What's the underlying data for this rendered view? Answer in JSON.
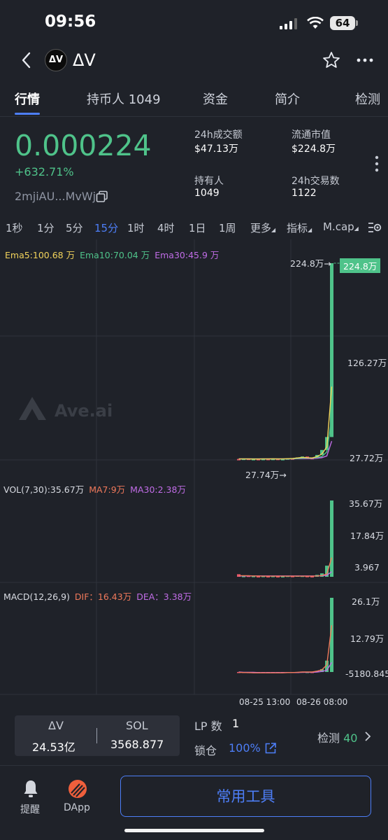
{
  "status_bar": {
    "time": "09:56",
    "battery": "64"
  },
  "header": {
    "title": "ΔV",
    "logo_text": "ΔV"
  },
  "tabs": [
    {
      "label": "行情"
    },
    {
      "label": "持币人 1049"
    },
    {
      "label": "资金"
    },
    {
      "label": "简介"
    },
    {
      "label": "检测"
    }
  ],
  "price": {
    "value": "0.000224",
    "change": "+632.71%",
    "address": "2mjiAU...MvWj"
  },
  "stats": {
    "volume_24h_label": "24h成交额",
    "volume_24h": "$47.13万",
    "market_cap_label": "流通市值",
    "market_cap": "$224.8万",
    "holders_label": "持有人",
    "holders": "1049",
    "tx_24h_label": "24h交易数",
    "tx_24h": "1122"
  },
  "timeframes": [
    "1秒",
    "1分",
    "5分",
    "15分",
    "1时",
    "4时",
    "1日",
    "1周"
  ],
  "active_timeframe": "15分",
  "chart_menu": {
    "more": "更多",
    "indicators": "指标",
    "mode": "M.cap"
  },
  "watermark": "Ave.ai",
  "colors": {
    "up": "#4fc38a",
    "down": "#e7576a",
    "accent": "#4d7ef7",
    "ema5": "#f2d35b",
    "ema10": "#4fc38a",
    "ema30": "#c06ce6",
    "dif": "#f0795b",
    "dea": "#c06ce6"
  },
  "chart_data": [
    {
      "type": "candlestick",
      "legend": {
        "ema5": "Ema5:100.68 万",
        "ema10": "Ema10:70.04 万",
        "ema30": "Ema30:45.9 万"
      },
      "y_ticks": [
        "224.8万",
        "126.27万",
        "27.72万"
      ],
      "high_label": "224.8万→",
      "low_label": "27.74万→",
      "last_label": "224.8万",
      "x_labels": [
        "08-25 13:00",
        "08-26 08:00"
      ],
      "candles": [
        {
          "o": 28.0,
          "c": 27.8
        },
        {
          "o": 27.8,
          "c": 28.3
        },
        {
          "o": 28.3,
          "c": 27.9
        },
        {
          "o": 27.9,
          "c": 28.0
        },
        {
          "o": 28.0,
          "c": 27.75
        },
        {
          "o": 27.75,
          "c": 28.1
        },
        {
          "o": 28.1,
          "c": 27.9
        },
        {
          "o": 27.9,
          "c": 28.2
        },
        {
          "o": 28.2,
          "c": 27.95
        },
        {
          "o": 27.95,
          "c": 28.0
        },
        {
          "o": 28.0,
          "c": 28.6
        },
        {
          "o": 28.6,
          "c": 28.3
        },
        {
          "o": 28.3,
          "c": 29.5
        },
        {
          "o": 29.5,
          "c": 30.4
        },
        {
          "o": 30.4,
          "c": 29.0
        },
        {
          "o": 29.0,
          "c": 28.6
        },
        {
          "o": 28.6,
          "c": 32.0
        },
        {
          "o": 32.0,
          "c": 37.0
        },
        {
          "o": 37.0,
          "c": 50.0
        },
        {
          "o": 50.0,
          "c": 224.8
        }
      ],
      "ema5": [
        28.0,
        28.0,
        28.0,
        27.9,
        27.95,
        28.0,
        28.0,
        28.1,
        28.0,
        28.0,
        28.2,
        28.5,
        29.0,
        29.6,
        29.2,
        29.0,
        30.3,
        33.0,
        40.0,
        100.68
      ],
      "ema10": [
        28.0,
        28.0,
        28.0,
        28.0,
        28.0,
        28.0,
        28.0,
        28.0,
        28.0,
        28.0,
        28.1,
        28.2,
        28.5,
        28.8,
        28.9,
        28.9,
        29.5,
        30.5,
        35.0,
        70.04
      ],
      "ema30": [
        28.0,
        28.0,
        28.0,
        28.0,
        28.0,
        28.0,
        28.0,
        28.0,
        28.0,
        28.0,
        28.0,
        28.1,
        28.2,
        28.3,
        28.4,
        28.4,
        28.7,
        29.3,
        31.0,
        45.9
      ]
    },
    {
      "type": "bar",
      "legend": {
        "vol": "VOL(7,30):35.67万",
        "ma7": "MA7:9万",
        "ma30": "MA30:2.38万"
      },
      "y_ticks": [
        "35.67万",
        "17.84万",
        "3.967"
      ],
      "values": [
        1.2,
        0.3,
        0.4,
        0.3,
        0.2,
        0.3,
        0.2,
        0.3,
        0.2,
        0.2,
        0.4,
        0.3,
        0.5,
        0.4,
        0.3,
        0.2,
        0.9,
        1.6,
        5.2,
        35.67
      ],
      "ma7": [
        0.5,
        0.5,
        0.5,
        0.4,
        0.4,
        0.3,
        0.3,
        0.3,
        0.3,
        0.3,
        0.3,
        0.3,
        0.3,
        0.3,
        0.3,
        0.3,
        0.4,
        0.6,
        1.3,
        9.0
      ],
      "ma30": [
        0.4,
        0.4,
        0.4,
        0.4,
        0.4,
        0.4,
        0.4,
        0.4,
        0.4,
        0.4,
        0.4,
        0.4,
        0.4,
        0.4,
        0.4,
        0.4,
        0.4,
        0.5,
        0.7,
        2.38
      ]
    },
    {
      "type": "macd",
      "legend": {
        "macd": "MACD(12,26,9)",
        "dif": "DIF：16.43万",
        "dea": "DEA：3.38万"
      },
      "y_ticks": [
        "26.1万",
        "12.79万",
        "-5180.845"
      ],
      "hist": [
        -0.2,
        -0.3,
        -0.4,
        -0.3,
        -0.4,
        -0.3,
        -0.4,
        -0.3,
        -0.3,
        -0.2,
        -0.2,
        -0.2,
        -0.1,
        0.1,
        0.0,
        -0.1,
        0.4,
        1.0,
        4.0,
        26.1
      ],
      "dif": [
        -0.1,
        -0.2,
        -0.2,
        -0.3,
        -0.3,
        -0.3,
        -0.3,
        -0.3,
        -0.3,
        -0.3,
        -0.2,
        -0.2,
        -0.1,
        0.0,
        0.0,
        0.0,
        0.3,
        0.8,
        2.5,
        16.43
      ],
      "dea": [
        0.0,
        -0.1,
        -0.1,
        -0.1,
        -0.2,
        -0.2,
        -0.2,
        -0.2,
        -0.2,
        -0.2,
        -0.2,
        -0.2,
        -0.2,
        -0.1,
        -0.1,
        -0.1,
        0.0,
        0.2,
        0.6,
        3.38
      ]
    }
  ],
  "bottom": {
    "pair_base": "ΔV",
    "pair_base_amount": "24.53亿",
    "pair_quote": "SOL",
    "pair_quote_amount": "3568.877",
    "lp_label": "LP 数",
    "lp_value": "1",
    "lock_label": "锁仓",
    "lock_value": "100%",
    "check_label": "检测",
    "check_value": "40"
  },
  "bottom_nav": {
    "alert_label": "提醒",
    "dapp_label": "DApp",
    "tools_button": "常用工具"
  }
}
